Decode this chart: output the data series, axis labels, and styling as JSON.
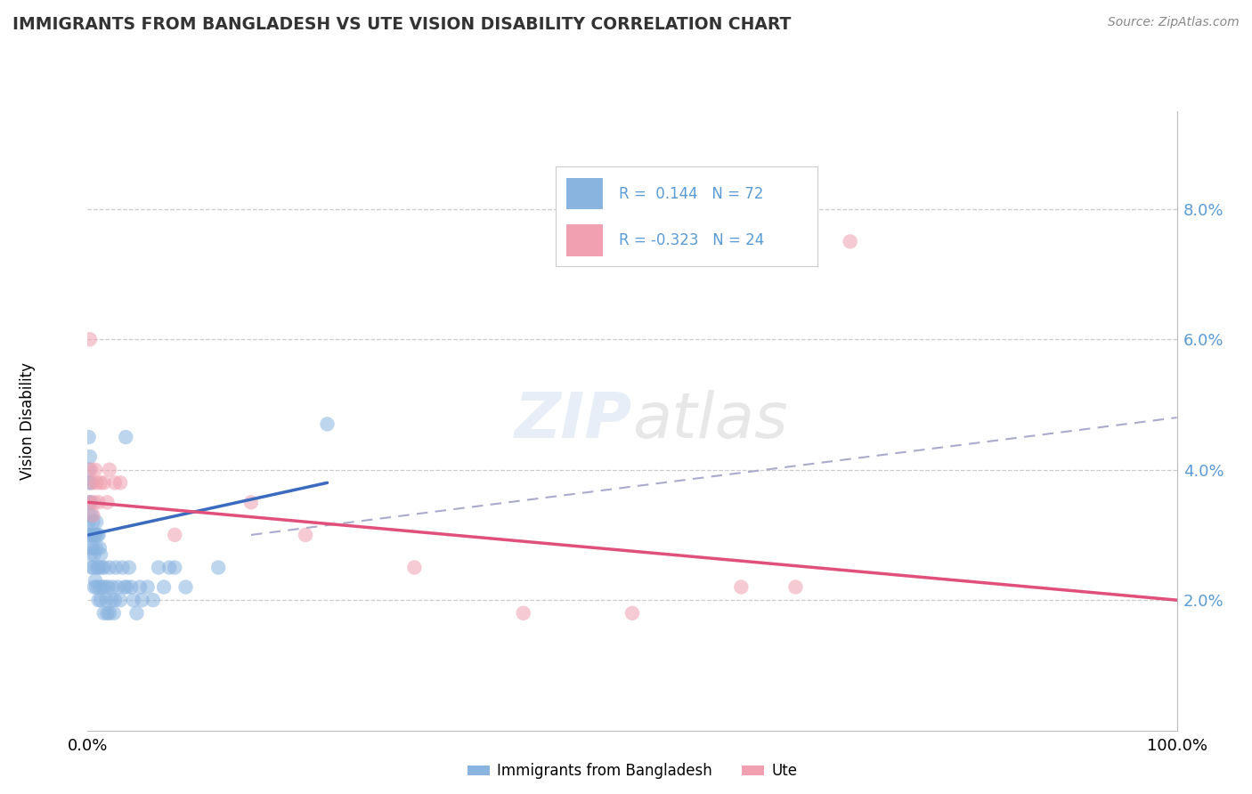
{
  "title": "IMMIGRANTS FROM BANGLADESH VS UTE VISION DISABILITY CORRELATION CHART",
  "source": "Source: ZipAtlas.com",
  "ylabel": "Vision Disability",
  "legend_label1": "Immigrants from Bangladesh",
  "legend_label2": "Ute",
  "R1": 0.144,
  "N1": 72,
  "R2": -0.323,
  "N2": 24,
  "blue_color": "#8ab4e0",
  "pink_color": "#f0a0b0",
  "blue_line_color": "#3a6bbf",
  "pink_line_color": "#e0507a",
  "dash_line_color": "#aaaacc",
  "background_color": "#ffffff",
  "right_axis_color": "#5b9bd5",
  "blue_scatter_x": [
    0.001,
    0.001,
    0.001,
    0.001,
    0.001,
    0.002,
    0.002,
    0.002,
    0.002,
    0.003,
    0.003,
    0.003,
    0.003,
    0.004,
    0.004,
    0.004,
    0.005,
    0.005,
    0.005,
    0.006,
    0.006,
    0.006,
    0.007,
    0.007,
    0.008,
    0.008,
    0.008,
    0.009,
    0.009,
    0.01,
    0.01,
    0.01,
    0.011,
    0.011,
    0.012,
    0.012,
    0.013,
    0.014,
    0.015,
    0.015,
    0.016,
    0.017,
    0.018,
    0.019,
    0.02,
    0.02,
    0.022,
    0.023,
    0.024,
    0.025,
    0.026,
    0.028,
    0.03,
    0.032,
    0.034,
    0.035,
    0.036,
    0.038,
    0.04,
    0.042,
    0.045,
    0.048,
    0.05,
    0.055,
    0.06,
    0.065,
    0.07,
    0.075,
    0.08,
    0.09,
    0.12,
    0.22
  ],
  "blue_scatter_y": [
    0.03,
    0.032,
    0.038,
    0.04,
    0.045,
    0.03,
    0.033,
    0.035,
    0.042,
    0.027,
    0.03,
    0.035,
    0.038,
    0.025,
    0.028,
    0.033,
    0.025,
    0.028,
    0.032,
    0.022,
    0.027,
    0.03,
    0.023,
    0.03,
    0.022,
    0.028,
    0.032,
    0.025,
    0.03,
    0.02,
    0.025,
    0.03,
    0.022,
    0.028,
    0.02,
    0.027,
    0.025,
    0.022,
    0.018,
    0.025,
    0.022,
    0.02,
    0.018,
    0.022,
    0.018,
    0.025,
    0.02,
    0.022,
    0.018,
    0.02,
    0.025,
    0.022,
    0.02,
    0.025,
    0.022,
    0.045,
    0.022,
    0.025,
    0.022,
    0.02,
    0.018,
    0.022,
    0.02,
    0.022,
    0.02,
    0.025,
    0.022,
    0.025,
    0.025,
    0.022,
    0.025,
    0.047
  ],
  "pink_scatter_x": [
    0.001,
    0.002,
    0.003,
    0.004,
    0.005,
    0.006,
    0.007,
    0.008,
    0.01,
    0.012,
    0.015,
    0.018,
    0.02,
    0.025,
    0.03,
    0.08,
    0.15,
    0.2,
    0.3,
    0.4,
    0.5,
    0.6,
    0.65,
    0.7
  ],
  "pink_scatter_y": [
    0.035,
    0.06,
    0.04,
    0.038,
    0.033,
    0.035,
    0.04,
    0.038,
    0.035,
    0.038,
    0.038,
    0.035,
    0.04,
    0.038,
    0.038,
    0.03,
    0.035,
    0.03,
    0.025,
    0.018,
    0.018,
    0.022,
    0.022,
    0.075
  ],
  "blue_line_x": [
    0.001,
    0.22
  ],
  "blue_line_y": [
    0.03,
    0.038
  ],
  "pink_line_x": [
    0.001,
    1.0
  ],
  "pink_line_y": [
    0.035,
    0.02
  ],
  "dash_line_x": [
    0.15,
    1.0
  ],
  "dash_line_y": [
    0.03,
    0.048
  ],
  "xlim": [
    0,
    1.0
  ],
  "ylim": [
    0,
    0.095
  ],
  "yticks": [
    0.02,
    0.04,
    0.06,
    0.08
  ],
  "ytick_labels": [
    "2.0%",
    "4.0%",
    "6.0%",
    "8.0%"
  ],
  "xticks": [
    0,
    1.0
  ],
  "xtick_labels": [
    "0.0%",
    "100.0%"
  ]
}
